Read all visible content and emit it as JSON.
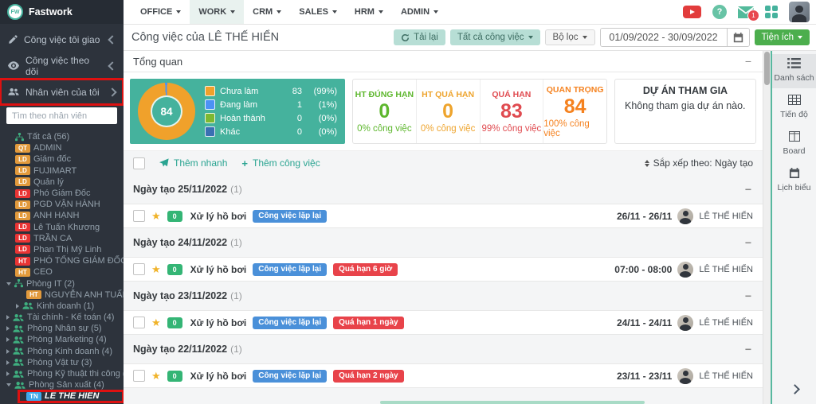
{
  "glyphs": {
    "minus": "−",
    "star": "★",
    "plus": "+",
    "help": "?"
  },
  "brand": {
    "name": "Fastwork",
    "logo_text": "FW"
  },
  "sidebar": {
    "menu": [
      {
        "label": "Công việc tôi giao",
        "icon": "pencil",
        "chevron": "left"
      },
      {
        "label": "Công việc theo dõi",
        "icon": "eye",
        "chevron": "left"
      },
      {
        "label": "Nhân viên của tôi",
        "icon": "users",
        "chevron": "down",
        "highlighted": true
      }
    ],
    "search_placeholder": "Tìm theo nhân viên",
    "tree": [
      {
        "kind": "group",
        "icon": "org",
        "label": "Tất cả (56)",
        "indent": 0
      },
      {
        "kind": "person",
        "badge": "QT",
        "color": "orange",
        "name": "ADMIN",
        "indent": 0
      },
      {
        "kind": "person",
        "badge": "LD",
        "color": "orange",
        "name": "Giám đốc",
        "indent": 0
      },
      {
        "kind": "person",
        "badge": "LD",
        "color": "orange",
        "name": "FUJIMART",
        "indent": 0
      },
      {
        "kind": "person",
        "badge": "LD",
        "color": "orange",
        "name": "Quản lý",
        "indent": 0
      },
      {
        "kind": "person",
        "badge": "LD",
        "color": "red",
        "name": "Phó Giám Đốc",
        "indent": 0
      },
      {
        "kind": "person",
        "badge": "LD",
        "color": "orange",
        "name": "PGD VẬN HÀNH",
        "indent": 0
      },
      {
        "kind": "person",
        "badge": "LD",
        "color": "orange",
        "name": "ANH HẠNH",
        "indent": 0
      },
      {
        "kind": "person",
        "badge": "LD",
        "color": "red",
        "name": "Lê Tuấn Khương",
        "indent": 0
      },
      {
        "kind": "person",
        "badge": "LD",
        "color": "red",
        "name": "TRẦN CA",
        "indent": 0
      },
      {
        "kind": "person",
        "badge": "LD",
        "color": "red",
        "name": "Phan Thị Mỹ Linh",
        "indent": 0
      },
      {
        "kind": "person",
        "badge": "HT",
        "color": "red",
        "name": "PHÓ TỔNG GIÁM ĐỐC",
        "indent": 0
      },
      {
        "kind": "person",
        "badge": "HT",
        "color": "orange",
        "name": "CEO",
        "indent": 0
      },
      {
        "kind": "group",
        "icon": "org",
        "caret": "down",
        "label": "Phòng IT (2)",
        "indent": 0
      },
      {
        "kind": "person",
        "badge": "HT",
        "color": "orange",
        "name": "NGUYỄN ANH TUẤN",
        "indent": 1
      },
      {
        "kind": "group",
        "icon": "users",
        "caret": "right",
        "label": "Kinh doanh (1)",
        "indent": 1
      },
      {
        "kind": "group",
        "icon": "users",
        "caret": "right",
        "label": "Tài chính - Kế toán (4)",
        "indent": 0
      },
      {
        "kind": "group",
        "icon": "users",
        "caret": "right",
        "label": "Phòng Nhân sự (5)",
        "indent": 0
      },
      {
        "kind": "group",
        "icon": "users",
        "caret": "right",
        "label": "Phòng Marketing (4)",
        "indent": 0
      },
      {
        "kind": "group",
        "icon": "users",
        "caret": "right",
        "label": "Phòng Kinh doanh (4)",
        "indent": 0
      },
      {
        "kind": "group",
        "icon": "users",
        "caret": "right",
        "label": "Phòng Vật tư (3)",
        "indent": 0
      },
      {
        "kind": "group",
        "icon": "users",
        "caret": "right",
        "label": "Phòng Kỹ thuật thi công (12)",
        "indent": 0
      },
      {
        "kind": "group",
        "icon": "users",
        "caret": "down",
        "label": "Phòng Sản xuất (4)",
        "indent": 0
      },
      {
        "kind": "person",
        "badge": "TN",
        "color": "blue",
        "name": "LÊ THẾ HIỂN",
        "indent": 1,
        "selected": true,
        "highlighted": true
      }
    ]
  },
  "topnav": {
    "items": [
      {
        "label": "OFFICE"
      },
      {
        "label": "WORK",
        "active": true
      },
      {
        "label": "CRM"
      },
      {
        "label": "SALES"
      },
      {
        "label": "HRM"
      },
      {
        "label": "ADMIN"
      }
    ],
    "notification_count": "1"
  },
  "titlebar": {
    "title": "Công việc của LÊ THẾ HIỂN",
    "reload_label": "Tải lại",
    "all_tasks_label": "Tất cả công việc",
    "filter_label": "Bộ lọc",
    "date_range": "01/09/2022 - 30/09/2022",
    "utilities_label": "Tiện ích"
  },
  "overview": {
    "section_title": "Tổng quan",
    "donut": {
      "type": "donut",
      "total": "84",
      "panel_color": "#45b29d",
      "slices": [
        {
          "label": "Chưa làm",
          "value": 83,
          "pct": "(99%)",
          "color": "#f0a12b"
        },
        {
          "label": "Đang làm",
          "value": 1,
          "pct": "(1%)",
          "color": "#4c92f5"
        },
        {
          "label": "Hoàn thành",
          "value": 0,
          "pct": "(0%)",
          "color": "#7cb832"
        },
        {
          "label": "Khác",
          "value": 0,
          "pct": "(0%)",
          "color": "#3a70b2"
        }
      ]
    },
    "stats": [
      {
        "label": "HT ĐÚNG HẠN",
        "value": "0",
        "sub": "0% công việc",
        "color": "#5eb72e"
      },
      {
        "label": "HT QUÁ HẠN",
        "value": "0",
        "sub": "0% công việc",
        "color": "#eea42d"
      },
      {
        "label": "QUÁ HẠN",
        "value": "83",
        "sub": "99% công việc",
        "color": "#e04b50"
      },
      {
        "label": "QUAN TRỌNG",
        "value": "84",
        "sub": "100% công việc",
        "color": "#f5821f"
      }
    ],
    "project_panel": {
      "title": "DỰ ÁN THAM GIA",
      "empty_text": "Không tham gia dự án nào."
    }
  },
  "task_list": {
    "quick_add_label": "Thêm nhanh",
    "add_task_label": "Thêm công việc",
    "sort_label": "Sắp xếp theo: Ngày tạo",
    "groups": [
      {
        "header": "Ngày tạo 25/11/2022",
        "count": "(1)",
        "tasks": [
          {
            "count_badge": "0",
            "title": "Xử lý hồ bơi",
            "chips": [
              {
                "label": "Công việc lặp lại",
                "color": "blue"
              }
            ],
            "date": "26/11 - 26/11",
            "assignee": "LÊ THẾ HIỂN"
          }
        ]
      },
      {
        "header": "Ngày tạo 24/11/2022",
        "count": "(1)",
        "tasks": [
          {
            "count_badge": "0",
            "title": "Xử lý hồ bơi",
            "chips": [
              {
                "label": "Công việc lặp lại",
                "color": "blue"
              },
              {
                "label": "Quá hạn 6 giờ",
                "color": "red"
              }
            ],
            "date": "07:00 - 08:00",
            "assignee": "LÊ THẾ HIỂN"
          }
        ]
      },
      {
        "header": "Ngày tạo 23/11/2022",
        "count": "(1)",
        "tasks": [
          {
            "count_badge": "0",
            "title": "Xử lý hồ bơi",
            "chips": [
              {
                "label": "Công việc lặp lại",
                "color": "blue"
              },
              {
                "label": "Quá hạn 1 ngày",
                "color": "red"
              }
            ],
            "date": "24/11 - 24/11",
            "assignee": "LÊ THẾ HIỂN"
          }
        ]
      },
      {
        "header": "Ngày tạo 22/11/2022",
        "count": "(1)",
        "tasks": [
          {
            "count_badge": "0",
            "title": "Xử lý hồ bơi",
            "chips": [
              {
                "label": "Công việc lặp lại",
                "color": "blue"
              },
              {
                "label": "Quá hạn 2 ngày",
                "color": "red"
              }
            ],
            "date": "23/11 - 23/11",
            "assignee": "LÊ THẾ HIỂN"
          }
        ]
      }
    ]
  },
  "right_sidebar": {
    "views": [
      {
        "label": "Danh sách",
        "icon": "list",
        "active": true
      },
      {
        "label": "Tiến độ",
        "icon": "table"
      },
      {
        "label": "Board",
        "icon": "board"
      },
      {
        "label": "Lịch biểu",
        "icon": "calendar"
      }
    ]
  }
}
